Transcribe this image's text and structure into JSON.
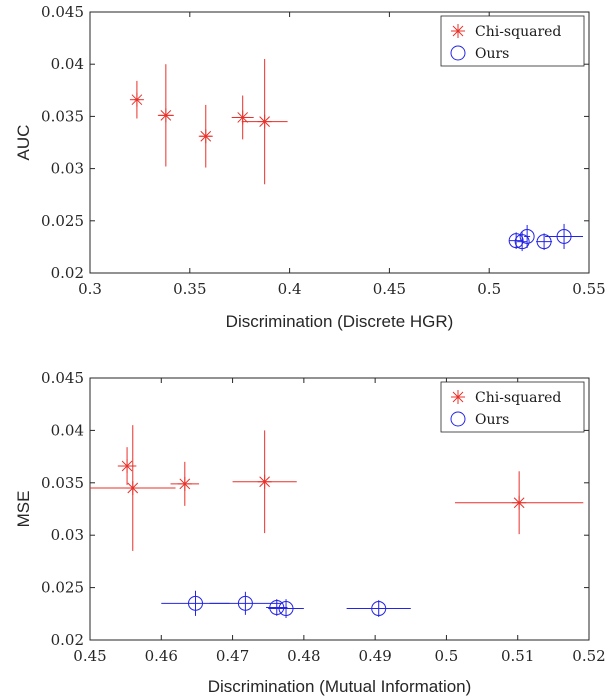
{
  "chart_data": [
    {
      "type": "scatter",
      "xlabel": "Discrimination (Discrete HGR)",
      "ylabel": "AUC",
      "xlim": [
        0.3,
        0.55
      ],
      "ylim": [
        0.02,
        0.045
      ],
      "xticks": [
        0.3,
        0.35,
        0.4,
        0.45,
        0.5,
        0.55
      ],
      "yticks": [
        0.02,
        0.025,
        0.03,
        0.035,
        0.04,
        0.045
      ],
      "xtick_labels": [
        "0.3",
        "0.35",
        "0.4",
        "0.45",
        "0.5",
        "0.55"
      ],
      "ytick_labels": [
        "0.02",
        "0.025",
        "0.03",
        "0.035",
        "0.04",
        "0.045"
      ],
      "grid": false,
      "legend_position": "top-right",
      "series": [
        {
          "name": "Chi-squared",
          "color": "#e8312a",
          "marker": "asterisk",
          "points": [
            {
              "x": 0.3235,
              "y": 0.0366,
              "xerr": 0.0015,
              "yerr": 0.0018
            },
            {
              "x": 0.338,
              "y": 0.0351,
              "xerr": 0.004,
              "yerr": 0.0049
            },
            {
              "x": 0.358,
              "y": 0.0331,
              "xerr": 0.003,
              "yerr": 0.003
            },
            {
              "x": 0.3765,
              "y": 0.0349,
              "xerr": 0.0055,
              "yerr": 0.0021
            },
            {
              "x": 0.3875,
              "y": 0.0345,
              "xerr": 0.0115,
              "yerr": 0.006
            }
          ]
        },
        {
          "name": "Ours",
          "color": "#2424e6",
          "marker": "circle",
          "points": [
            {
              "x": 0.5135,
              "y": 0.0231,
              "xerr": 0.0035,
              "yerr": 0.0008
            },
            {
              "x": 0.5165,
              "y": 0.023,
              "xerr": 0.0025,
              "yerr": 0.0009
            },
            {
              "x": 0.519,
              "y": 0.0235,
              "xerr": 0.0015,
              "yerr": 0.0011
            },
            {
              "x": 0.5275,
              "y": 0.023,
              "xerr": 0.004,
              "yerr": 0.0008
            },
            {
              "x": 0.5375,
              "y": 0.0235,
              "xerr": 0.0095,
              "yerr": 0.0012
            }
          ]
        }
      ]
    },
    {
      "type": "scatter",
      "xlabel": "Discrimination (Mutual Information)",
      "ylabel": "MSE",
      "xlim": [
        0.45,
        0.52
      ],
      "ylim": [
        0.02,
        0.045
      ],
      "xticks": [
        0.45,
        0.46,
        0.47,
        0.48,
        0.49,
        0.5,
        0.51,
        0.52
      ],
      "yticks": [
        0.02,
        0.025,
        0.03,
        0.035,
        0.04,
        0.045
      ],
      "xtick_labels": [
        "0.45",
        "0.46",
        "0.47",
        "0.48",
        "0.49",
        "0.5",
        "0.51",
        "0.52"
      ],
      "ytick_labels": [
        "0.02",
        "0.025",
        "0.03",
        "0.035",
        "0.04",
        "0.045"
      ],
      "grid": false,
      "legend_position": "top-right",
      "series": [
        {
          "name": "Chi-squared",
          "color": "#e8312a",
          "marker": "asterisk",
          "points": [
            {
              "x": 0.4552,
              "y": 0.0366,
              "xerr": 0.0013,
              "yerr": 0.0018
            },
            {
              "x": 0.456,
              "y": 0.0345,
              "xerr": 0.006,
              "yerr": 0.006
            },
            {
              "x": 0.4633,
              "y": 0.0349,
              "xerr": 0.002,
              "yerr": 0.0021
            },
            {
              "x": 0.4745,
              "y": 0.0351,
              "xerr": 0.0045,
              "yerr": 0.0049
            },
            {
              "x": 0.5102,
              "y": 0.0331,
              "xerr": 0.009,
              "yerr": 0.003
            }
          ]
        },
        {
          "name": "Ours",
          "color": "#2424e6",
          "marker": "circle",
          "points": [
            {
              "x": 0.4648,
              "y": 0.0235,
              "xerr": 0.0048,
              "yerr": 0.0012
            },
            {
              "x": 0.4718,
              "y": 0.0235,
              "xerr": 0.005,
              "yerr": 0.0011
            },
            {
              "x": 0.4762,
              "y": 0.0231,
              "xerr": 0.0015,
              "yerr": 0.0008
            },
            {
              "x": 0.4775,
              "y": 0.023,
              "xerr": 0.0025,
              "yerr": 0.0009
            },
            {
              "x": 0.4905,
              "y": 0.023,
              "xerr": 0.0045,
              "yerr": 0.0008
            }
          ]
        }
      ]
    }
  ]
}
